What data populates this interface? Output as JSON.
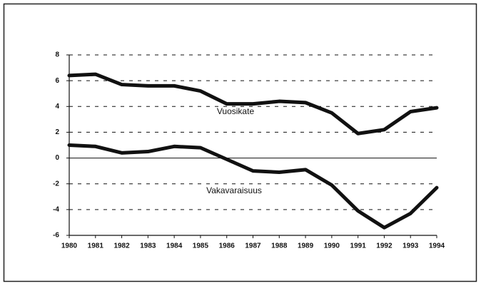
{
  "chart_data": {
    "type": "line",
    "categories": [
      "1980",
      "1981",
      "1982",
      "1983",
      "1984",
      "1985",
      "1986",
      "1987",
      "1988",
      "1989",
      "1990",
      "1991",
      "1992",
      "1993",
      "1994"
    ],
    "series": [
      {
        "name": "Vuosikate",
        "color": "#111111",
        "values": [
          6.4,
          6.5,
          5.7,
          5.6,
          5.6,
          5.2,
          4.2,
          4.2,
          4.4,
          4.3,
          3.5,
          1.9,
          2.2,
          3.6,
          3.9
        ]
      },
      {
        "name": "Vakavaraisuus",
        "color": "#111111",
        "values": [
          1.0,
          0.9,
          0.4,
          0.5,
          0.9,
          0.8,
          -0.1,
          -1.0,
          -1.1,
          -0.9,
          -2.1,
          -4.1,
          -5.4,
          -4.3,
          -2.3
        ]
      }
    ],
    "ylim": [
      -6,
      8
    ],
    "yticks": [
      -6,
      -4,
      -2,
      0,
      2,
      4,
      6,
      8
    ],
    "grid": true
  }
}
